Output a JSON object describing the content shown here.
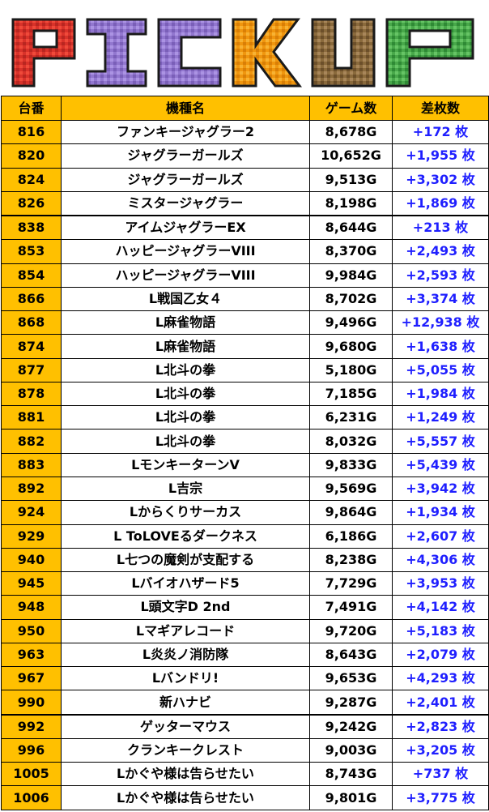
{
  "banner": {
    "title": "PICKUP"
  },
  "colors": {
    "header_bg": "#ffc000",
    "number_bg": "#ffc000",
    "diff_text": "#1f1fff",
    "letter_P": "#e43a2e",
    "letter_I": "#9a7fd6",
    "letter_C": "#9a7fd6",
    "letter_K": "#f39c12",
    "letter_U": "#8b6a3e",
    "letter_P2": "#4caf50"
  },
  "table": {
    "headers": [
      "台番",
      "機種名",
      "ゲーム数",
      "差枚数"
    ],
    "rows": [
      {
        "num": "816",
        "name": "ファンキージャグラー2",
        "games": "8,678G",
        "diff": "+172 枚"
      },
      {
        "num": "820",
        "name": "ジャグラーガールズ",
        "games": "10,652G",
        "diff": "+1,955 枚"
      },
      {
        "num": "824",
        "name": "ジャグラーガールズ",
        "games": "9,513G",
        "diff": "+3,302 枚"
      },
      {
        "num": "826",
        "name": "ミスタージャグラー",
        "games": "8,198G",
        "diff": "+1,869 枚"
      },
      {
        "num": "838",
        "name": "アイムジャグラーEX",
        "games": "8,644G",
        "diff": "+213 枚"
      },
      {
        "num": "853",
        "name": "ハッピージャグラーVIII",
        "games": "8,370G",
        "diff": "+2,493 枚"
      },
      {
        "num": "854",
        "name": "ハッピージャグラーVIII",
        "games": "9,984G",
        "diff": "+2,593 枚"
      },
      {
        "num": "866",
        "name": "L戦国乙女４",
        "games": "8,702G",
        "diff": "+3,374 枚"
      },
      {
        "num": "868",
        "name": "L麻雀物語",
        "games": "9,496G",
        "diff": "+12,938 枚"
      },
      {
        "num": "874",
        "name": "L麻雀物語",
        "games": "9,680G",
        "diff": "+1,638 枚"
      },
      {
        "num": "877",
        "name": "L北斗の拳",
        "games": "5,180G",
        "diff": "+5,055 枚"
      },
      {
        "num": "878",
        "name": "L北斗の拳",
        "games": "7,185G",
        "diff": "+1,984 枚"
      },
      {
        "num": "881",
        "name": "L北斗の拳",
        "games": "6,231G",
        "diff": "+1,249 枚"
      },
      {
        "num": "882",
        "name": "L北斗の拳",
        "games": "8,032G",
        "diff": "+5,557 枚"
      },
      {
        "num": "883",
        "name": "LモンキーターンV",
        "games": "9,833G",
        "diff": "+5,439 枚"
      },
      {
        "num": "892",
        "name": "L吉宗",
        "games": "9,569G",
        "diff": "+3,942 枚"
      },
      {
        "num": "924",
        "name": "Lからくりサーカス",
        "games": "9,864G",
        "diff": "+1,934 枚"
      },
      {
        "num": "929",
        "name": "L ToLOVEるダークネス",
        "games": "6,186G",
        "diff": "+2,607 枚"
      },
      {
        "num": "940",
        "name": "L七つの魔剣が支配する",
        "games": "8,238G",
        "diff": "+4,306 枚"
      },
      {
        "num": "945",
        "name": "Lバイオハザード5",
        "games": "7,729G",
        "diff": "+3,953 枚"
      },
      {
        "num": "948",
        "name": "L頭文字D 2nd",
        "games": "7,491G",
        "diff": "+4,142 枚"
      },
      {
        "num": "950",
        "name": "Lマギアレコード",
        "games": "9,720G",
        "diff": "+5,183 枚"
      },
      {
        "num": "963",
        "name": "L炎炎ノ消防隊",
        "games": "8,643G",
        "diff": "+2,079 枚"
      },
      {
        "num": "967",
        "name": "Lバンドリ!",
        "games": "9,653G",
        "diff": "+4,293 枚"
      },
      {
        "num": "990",
        "name": "新ハナビ",
        "games": "9,287G",
        "diff": "+2,401 枚"
      },
      {
        "num": "992",
        "name": "ゲッターマウス",
        "games": "9,242G",
        "diff": "+2,823 枚"
      },
      {
        "num": "996",
        "name": "クランキークレスト",
        "games": "9,003G",
        "diff": "+3,205 枚"
      },
      {
        "num": "1005",
        "name": "Lかぐや様は告らせたい",
        "games": "8,743G",
        "diff": "+737 枚"
      },
      {
        "num": "1006",
        "name": "Lかぐや様は告らせたい",
        "games": "9,801G",
        "diff": "+3,775 枚"
      }
    ]
  }
}
